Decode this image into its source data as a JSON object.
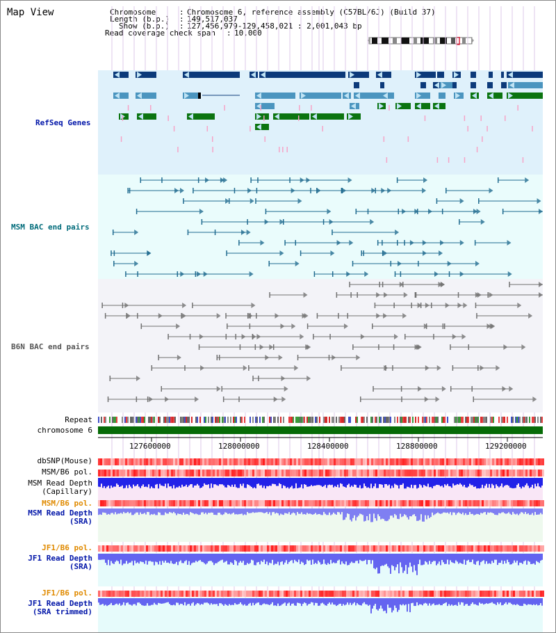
{
  "title": "Map View",
  "info": {
    "chromosome_key": "Chromosome",
    "chromosome_val": "Chromosome 6, reference assembly (C57BL/6J) (Build 37)",
    "length_key": "Length (b.p.)",
    "length_val": "149,517,037",
    "show_key": "Show (b.p.)",
    "show_val": "127,456,979-129,458,021 : 2,001,043 bp",
    "coverage_key": "Read coverage check span",
    "coverage_val": "10,000"
  },
  "tracks": {
    "refseq": "RefSeq Genes",
    "msm_bac": "MSM BAC end pairs",
    "b6n_bac": "B6N BAC end pairs",
    "repeat": "Repeat",
    "chromosome": "chromosome 6",
    "dbsnp": "dbSNP(Mouse)",
    "msm_b6_pol_1": "MSM/B6 pol.",
    "msm_read_depth_cap": "MSM Read Depth\n(Capillary)",
    "msm_b6_pol_2": "MSM/B6 pol.",
    "msm_read_depth_sra": "MSM Read Depth\n(SRA)",
    "jf1_b6_pol_1": "JF1/B6 pol.",
    "jf1_read_depth_sra": "JF1 Read Depth\n(SRA)",
    "jf1_b6_pol_2": "JF1/B6 pol.",
    "jf1_read_depth_trim": "JF1 Read Depth\n(SRA trimmed)"
  },
  "axis_ticks": [
    "127600000",
    "128000000",
    "128400000",
    "128800000",
    "129200000"
  ],
  "colors": {
    "refseq_bg": "#dff1fb",
    "msm_bg": "#eafcfc",
    "b6n_bg": "#f3f3f8",
    "gene_dark": "#0c3a7a",
    "gene_mid": "#4b95bf",
    "gene_green": "#0b7410",
    "pink": "#f7a3c6",
    "msm_line": "#1f6a8f",
    "b6n_line": "#707070",
    "chrom_green": "#066b06",
    "label_blue": "#0014a8",
    "label_orange": "#e08a00",
    "label_teal": "#006b7a"
  }
}
